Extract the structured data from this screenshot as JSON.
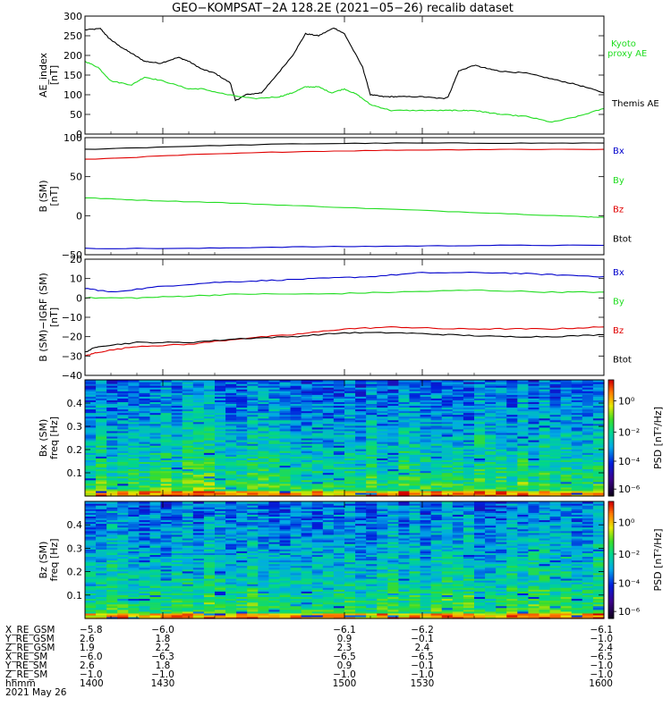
{
  "title": "GEO−KOMPSAT−2A 128.2E (2021−05−26) recalib dataset",
  "colors": {
    "black": "#000000",
    "red": "#e00000",
    "green": "#22dd22",
    "blue": "#0000cc",
    "axis": "#000000"
  },
  "panels": [
    {
      "id": "ae",
      "ylabel": "AE index [nT]",
      "ylabel_lines": [
        "AE_index",
        "[nT]"
      ],
      "yticks": [
        "300",
        "250",
        "200",
        "150",
        "100",
        "50",
        "0"
      ]
    },
    {
      "id": "bsm",
      "ylabel_lines": [
        "B (SM)",
        "[nT]"
      ],
      "yticks": [
        "100",
        "50",
        "0",
        "−50"
      ]
    },
    {
      "id": "bigrf",
      "ylabel_lines": [
        "B (SM)−IGRF (SM)",
        "[nT]"
      ],
      "yticks": [
        "20",
        "10",
        "0",
        "−10",
        "−20",
        "−30",
        "−40"
      ]
    },
    {
      "id": "specbx",
      "ylabel_lines": [
        "Bx (SM)",
        "freq [Hz]"
      ],
      "yticks": [
        "0.4",
        "0.3",
        "0.2",
        "0.1"
      ],
      "cbar_label": "PSD [nT²/Hz]",
      "cbar_ticks": [
        "10⁰",
        "10⁻²",
        "10⁻⁴",
        "10⁻⁶"
      ]
    },
    {
      "id": "specbz",
      "ylabel_lines": [
        "Bz (SM)",
        "freq [Hz]"
      ],
      "yticks": [
        "0.4",
        "0.3",
        "0.2",
        "0.1"
      ],
      "cbar_label": "PSD [nT²/Hz]",
      "cbar_ticks": [
        "10⁰",
        "10⁻²",
        "10⁻⁴",
        "10⁻⁶"
      ]
    }
  ],
  "legends": {
    "ae": [
      {
        "text": "Kyoto",
        "color": "#22dd22"
      },
      {
        "text": "proxy AE",
        "color": "#22dd22"
      },
      {
        "text": "Themis AE",
        "color": "#000000"
      }
    ],
    "bsm": [
      {
        "text": "Bx",
        "color": "#0000cc"
      },
      {
        "text": "By",
        "color": "#22dd22"
      },
      {
        "text": "Bz",
        "color": "#e00000"
      },
      {
        "text": "Btot",
        "color": "#000000"
      }
    ],
    "bigrf": [
      {
        "text": "Bx",
        "color": "#0000cc"
      },
      {
        "text": "By",
        "color": "#22dd22"
      },
      {
        "text": "Bz",
        "color": "#e00000"
      },
      {
        "text": "Btot",
        "color": "#000000"
      }
    ]
  },
  "footer": {
    "rows": [
      {
        "label": "X_RE_GSM",
        "values": [
          "−5.8",
          "−6.0",
          "−6.1",
          "−6.2",
          "−6.1"
        ]
      },
      {
        "label": "Y_RE_GSM",
        "values": [
          "2.6",
          "1.8",
          "0.9",
          "−0.1",
          "−1.0"
        ]
      },
      {
        "label": "Z_RE_GSM",
        "values": [
          "1.9",
          "2.2",
          "2.3",
          "2.4",
          "2.4"
        ]
      },
      {
        "label": "X_RE_SM",
        "values": [
          "−6.0",
          "−6.3",
          "−6.5",
          "−6.5",
          "−6.5"
        ]
      },
      {
        "label": "Y_RE_SM",
        "values": [
          "2.6",
          "1.8",
          "0.9",
          "−0.1",
          "−1.0"
        ]
      },
      {
        "label": "Z_RE_SM",
        "values": [
          "−1.0",
          "−1.0",
          "−1.0",
          "−1.0",
          "−1.0"
        ]
      },
      {
        "label": "hhmm",
        "values": [
          "1400",
          "1430",
          "1500",
          "1530",
          "1600"
        ]
      }
    ],
    "date": "2021 May 26"
  },
  "chart_data": [
    {
      "type": "line",
      "panel": "ae",
      "ylim": [
        0,
        300
      ],
      "xlim": [
        1400,
        1600
      ],
      "series": [
        {
          "name": "Themis AE",
          "color": "#000000",
          "x": [
            1400,
            1406,
            1409,
            1413,
            1418,
            1423,
            1429,
            1436,
            1440,
            1445,
            1450,
            1456,
            1458,
            1462,
            1468,
            1472,
            1480,
            1485,
            1490,
            1496,
            1500,
            1507,
            1510,
            1515,
            1520,
            1530,
            1538,
            1540,
            1544,
            1550,
            1556,
            1560,
            1570,
            1580,
            1590,
            1600
          ],
          "y": [
            265,
            268,
            245,
            225,
            205,
            185,
            180,
            195,
            185,
            165,
            155,
            130,
            85,
            100,
            105,
            135,
            200,
            255,
            250,
            270,
            255,
            170,
            100,
            95,
            95,
            95,
            90,
            95,
            160,
            175,
            165,
            160,
            155,
            140,
            125,
            105
          ]
        },
        {
          "name": "Kyoto proxy AE",
          "color": "#22dd22",
          "x": [
            1400,
            1405,
            1410,
            1418,
            1423,
            1430,
            1440,
            1445,
            1455,
            1465,
            1475,
            1480,
            1485,
            1490,
            1495,
            1500,
            1505,
            1510,
            1518,
            1530,
            1540,
            1545,
            1550,
            1555,
            1560,
            1570,
            1580,
            1590,
            1600
          ],
          "y": [
            185,
            170,
            135,
            125,
            145,
            135,
            115,
            115,
            100,
            90,
            95,
            105,
            120,
            120,
            105,
            115,
            100,
            75,
            60,
            60,
            60,
            60,
            60,
            55,
            50,
            45,
            30,
            45,
            65
          ]
        }
      ]
    },
    {
      "type": "line",
      "panel": "bsm",
      "ylim": [
        -50,
        100
      ],
      "xlim": [
        1400,
        1600
      ],
      "series": [
        {
          "name": "Btot",
          "color": "#000000",
          "x": [
            1400,
            1440,
            1480,
            1520,
            1560,
            1600
          ],
          "y": [
            85,
            89,
            92,
            93,
            93,
            93
          ]
        },
        {
          "name": "Bz",
          "color": "#e00000",
          "x": [
            1400,
            1440,
            1480,
            1520,
            1560,
            1600
          ],
          "y": [
            72,
            78,
            82,
            84,
            85,
            85
          ]
        },
        {
          "name": "By",
          "color": "#22dd22",
          "x": [
            1400,
            1420,
            1450,
            1480,
            1520,
            1560,
            1590,
            1600
          ],
          "y": [
            23,
            20,
            17,
            13,
            8,
            3,
            -1,
            -2
          ]
        },
        {
          "name": "Bx",
          "color": "#0000cc",
          "x": [
            1400,
            1440,
            1480,
            1520,
            1560,
            1600
          ],
          "y": [
            -42,
            -42,
            -40,
            -39,
            -38,
            -38
          ]
        }
      ]
    },
    {
      "type": "line",
      "panel": "bigrf",
      "ylim": [
        -40,
        20
      ],
      "xlim": [
        1400,
        1600
      ],
      "series": [
        {
          "name": "Bx",
          "color": "#0000cc",
          "x": [
            1400,
            1410,
            1430,
            1450,
            1470,
            1490,
            1510,
            1530,
            1560,
            1580,
            1600
          ],
          "y": [
            5,
            3,
            6,
            8,
            9,
            10,
            11,
            13,
            13,
            12,
            11
          ]
        },
        {
          "name": "By",
          "color": "#22dd22",
          "x": [
            1400,
            1420,
            1440,
            1460,
            1490,
            1520,
            1550,
            1580,
            1600
          ],
          "y": [
            0,
            0,
            1,
            2,
            2,
            3,
            4,
            3,
            3
          ]
        },
        {
          "name": "Bz",
          "color": "#e00000",
          "x": [
            1400,
            1405,
            1420,
            1440,
            1460,
            1480,
            1500,
            1520,
            1540,
            1560,
            1580,
            1600
          ],
          "y": [
            -30,
            -28,
            -25,
            -24,
            -21,
            -19,
            -16,
            -15,
            -16,
            -16,
            -16,
            -15
          ]
        },
        {
          "name": "Btot",
          "color": "#000000",
          "x": [
            1400,
            1405,
            1420,
            1440,
            1460,
            1480,
            1500,
            1520,
            1540,
            1560,
            1580,
            1600
          ],
          "y": [
            -28,
            -25,
            -23,
            -23,
            -21,
            -20,
            -18,
            -18,
            -19,
            -20,
            -20,
            -19
          ]
        }
      ]
    },
    {
      "type": "heatmap",
      "panel": "specbx",
      "ylim": [
        0,
        0.5
      ],
      "xlim": [
        1400,
        1600
      ],
      "colorbar": "log PSD 1e-8 to 1e1"
    },
    {
      "type": "heatmap",
      "panel": "specbz",
      "ylim": [
        0,
        0.5
      ],
      "xlim": [
        1400,
        1600
      ],
      "colorbar": "log PSD 1e-8 to 1e1"
    }
  ]
}
